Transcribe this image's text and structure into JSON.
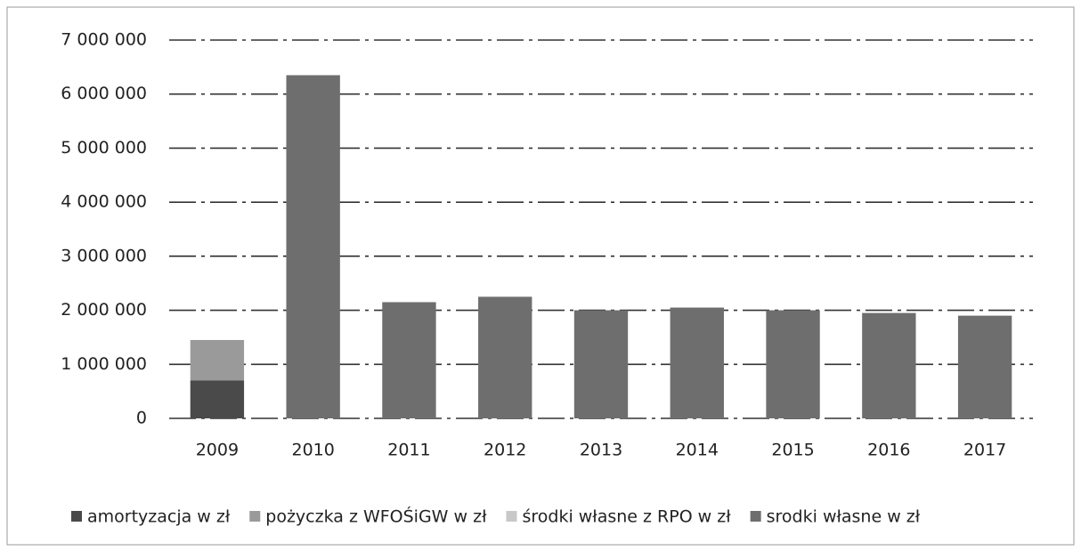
{
  "chart_data": {
    "type": "stacked_bar",
    "categories": [
      "2009",
      "2010",
      "2011",
      "2012",
      "2013",
      "2014",
      "2015",
      "2016",
      "2017"
    ],
    "series": [
      {
        "name": "amortyzacja w zł",
        "color": "#4a4a4a",
        "values": [
          700000,
          null,
          null,
          null,
          null,
          null,
          null,
          null,
          null
        ]
      },
      {
        "name": "pożyczka z WFOŚiGW w zł",
        "color": "#9a9a9a",
        "values": [
          750000,
          null,
          null,
          null,
          null,
          null,
          null,
          null,
          null
        ]
      },
      {
        "name": "środki własne z RPO w zł",
        "color": "#c8c8c8",
        "values": [
          null,
          null,
          null,
          null,
          null,
          null,
          null,
          null,
          null
        ]
      },
      {
        "name": "srodki własne w zł",
        "color": "#6e6e6e",
        "values": [
          null,
          6350000,
          2150000,
          2250000,
          2000000,
          2050000,
          2000000,
          1950000,
          1900000
        ]
      }
    ],
    "ylim": [
      0,
      7000000
    ],
    "yticks": [
      0,
      {
        "value": 1000000,
        "label": "1 000 000"
      },
      {
        "value": 2000000,
        "label": "2 000 000"
      },
      {
        "value": 3000000,
        "label": "3 000 000"
      },
      {
        "value": 4000000,
        "label": "4 000 000"
      },
      {
        "value": 5000000,
        "label": "5 000 000"
      },
      {
        "value": 6000000,
        "label": "6 000 000"
      },
      {
        "value": 7000000,
        "label": "7 000 000"
      }
    ],
    "grid": true
  }
}
